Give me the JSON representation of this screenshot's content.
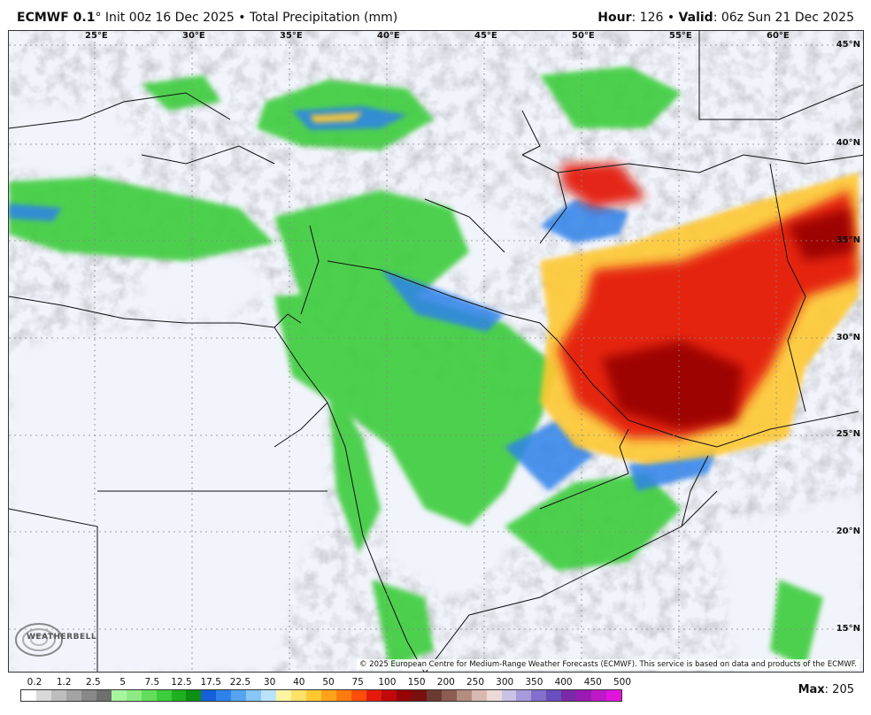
{
  "header": {
    "model": "ECMWF 0.1",
    "deg": "°",
    "init": " Init 00z 16 Dec 2025 • Total Precipitation (mm)",
    "hour_label": "Hour",
    "hour_value": ": 126 • ",
    "valid_label": "Valid",
    "valid_value": ": 06z Sun 21 Dec 2025"
  },
  "map": {
    "longitude_labels": [
      "25°E",
      "30°E",
      "35°E",
      "40°E",
      "45°E",
      "50°E",
      "55°E",
      "60°E"
    ],
    "latitude_labels": [
      "45°N",
      "40°N",
      "35°N",
      "30°N",
      "25°N",
      "20°N",
      "15°N"
    ],
    "copyright": "© 2025 European Centre for Medium-Range Weather Forecasts (ECMWF). This service is based on data and products of the ECMWF.",
    "logo_text": "WEATHERBELL"
  },
  "legend": {
    "ticks": [
      "0.2",
      "1.2",
      "2.5",
      "5",
      "7.5",
      "12.5",
      "17.5",
      "22.5",
      "30",
      "40",
      "50",
      "75",
      "100",
      "150",
      "200",
      "250",
      "300",
      "350",
      "400",
      "450",
      "500"
    ],
    "colors": [
      "#ffffff",
      "#d9d9d9",
      "#bdbdbd",
      "#a3a3a3",
      "#888888",
      "#6f6f6f",
      "#a8f5a0",
      "#8ceb82",
      "#63de5b",
      "#3ccd3c",
      "#1fb01f",
      "#0d8f12",
      "#1560d8",
      "#2f82ea",
      "#55a4f0",
      "#87c6f6",
      "#b9e3fb",
      "#fff5a0",
      "#ffe169",
      "#ffc830",
      "#ffa31a",
      "#ff7b10",
      "#ff4d0a",
      "#e41a0a",
      "#c20808",
      "#960404",
      "#7a0f0f",
      "#6b3b33",
      "#8c5d52",
      "#b58c80",
      "#d8b8b0",
      "#ecdad6",
      "#c9c2e6",
      "#a69adb",
      "#8370cc",
      "#6a4ebd",
      "#7a2aa8",
      "#9a1ab3",
      "#bf18c8",
      "#e015dc"
    ]
  },
  "max": {
    "label": "Max",
    "value": ": 205"
  }
}
